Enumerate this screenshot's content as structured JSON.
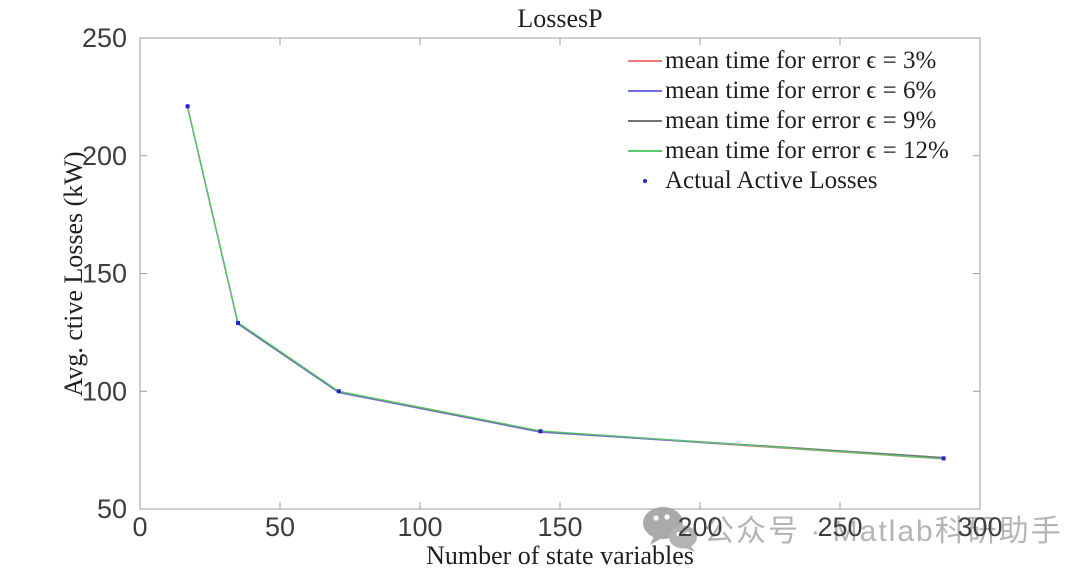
{
  "watermark": {
    "text": "公众号 · Matlab科研助手",
    "icon": "wechat-icon",
    "color": "#b4b4b4"
  },
  "axis_style": {
    "box_color": "#9c9c9c",
    "tick_label_color": "#3d3d3d"
  },
  "chart_data": {
    "type": "line",
    "title": "LossesP",
    "xlabel": "Number of state variables",
    "ylabel": "Avg.  ctive Losses (kW)",
    "xlim": [
      0,
      300
    ],
    "ylim": [
      50,
      250
    ],
    "xticks": [
      0,
      50,
      100,
      150,
      200,
      250,
      300
    ],
    "yticks": [
      50,
      100,
      150,
      200,
      250
    ],
    "grid": false,
    "legend_position": "top-right",
    "x": [
      17,
      35,
      71,
      143,
      287
    ],
    "series": [
      {
        "name": "mean time for error ϵ = 3%",
        "color": "#ee7777",
        "values": [
          220.6,
          128.7,
          99.6,
          82.8,
          71.2
        ]
      },
      {
        "name": "mean time for error ϵ = 6%",
        "color": "#6e6ee0",
        "values": [
          220.4,
          128.5,
          99.4,
          82.6,
          71.7
        ]
      },
      {
        "name": "mean time for error ϵ = 9%",
        "color": "#737373",
        "values": [
          220.9,
          129.0,
          99.8,
          83.0,
          71.9
        ]
      },
      {
        "name": "mean time for error ϵ = 12%",
        "color": "#55cc66",
        "values": [
          221.0,
          129.2,
          100.0,
          83.2,
          71.3
        ]
      }
    ],
    "points": {
      "name": "Actual Active Losses",
      "color": "#2222cc",
      "x": [
        17,
        35,
        71,
        143,
        287
      ],
      "values": [
        221,
        129,
        100,
        83,
        71.5
      ]
    }
  }
}
